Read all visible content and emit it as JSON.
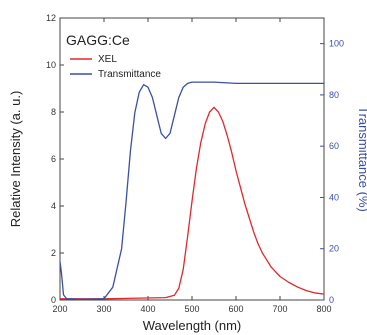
{
  "chart_data": {
    "type": "line",
    "title": "",
    "annotation": "GAGG:Ce",
    "xlabel": "Wavelength (nm)",
    "ylabel": "Relative Intensity (a. u.)",
    "y2label": "Transmittance (%)",
    "xlim": [
      200,
      800
    ],
    "ylim": [
      0,
      12
    ],
    "y2lim": [
      0,
      110
    ],
    "x_ticks": [
      200,
      300,
      400,
      500,
      600,
      700,
      800
    ],
    "y_ticks": [
      0,
      2,
      4,
      6,
      8,
      10,
      12
    ],
    "y2_ticks": [
      0,
      20,
      40,
      60,
      80,
      100
    ],
    "legend_position": "top-left",
    "series": [
      {
        "name": "XEL",
        "axis": "left",
        "color": "#e0282d",
        "x": [
          200,
          300,
          440,
          460,
          470,
          480,
          490,
          500,
          510,
          520,
          530,
          540,
          550,
          560,
          570,
          580,
          590,
          600,
          610,
          620,
          630,
          640,
          650,
          660,
          670,
          680,
          690,
          700,
          720,
          740,
          760,
          780,
          800
        ],
        "y": [
          0.05,
          0.05,
          0.1,
          0.2,
          0.5,
          1.3,
          2.7,
          4.2,
          5.6,
          6.7,
          7.5,
          8.0,
          8.2,
          8.0,
          7.6,
          7.0,
          6.3,
          5.5,
          4.8,
          4.1,
          3.5,
          2.9,
          2.4,
          2.0,
          1.7,
          1.4,
          1.2,
          1.0,
          0.75,
          0.55,
          0.4,
          0.3,
          0.25
        ]
      },
      {
        "name": "Transmittance",
        "axis": "right",
        "color": "#3a4fa8",
        "x": [
          200,
          203,
          208,
          215,
          250,
          300,
          320,
          340,
          350,
          360,
          370,
          380,
          390,
          400,
          410,
          420,
          430,
          440,
          450,
          460,
          470,
          480,
          490,
          500,
          520,
          550,
          600,
          650,
          700,
          750,
          800
        ],
        "y": [
          15,
          11,
          2,
          0.5,
          0.3,
          0.5,
          5,
          20,
          38,
          58,
          73,
          81,
          84,
          83,
          79,
          72,
          65,
          63,
          65,
          72,
          79,
          83,
          84.5,
          85,
          85,
          85,
          84.5,
          84.5,
          84.5,
          84.5,
          84.5
        ]
      }
    ]
  }
}
